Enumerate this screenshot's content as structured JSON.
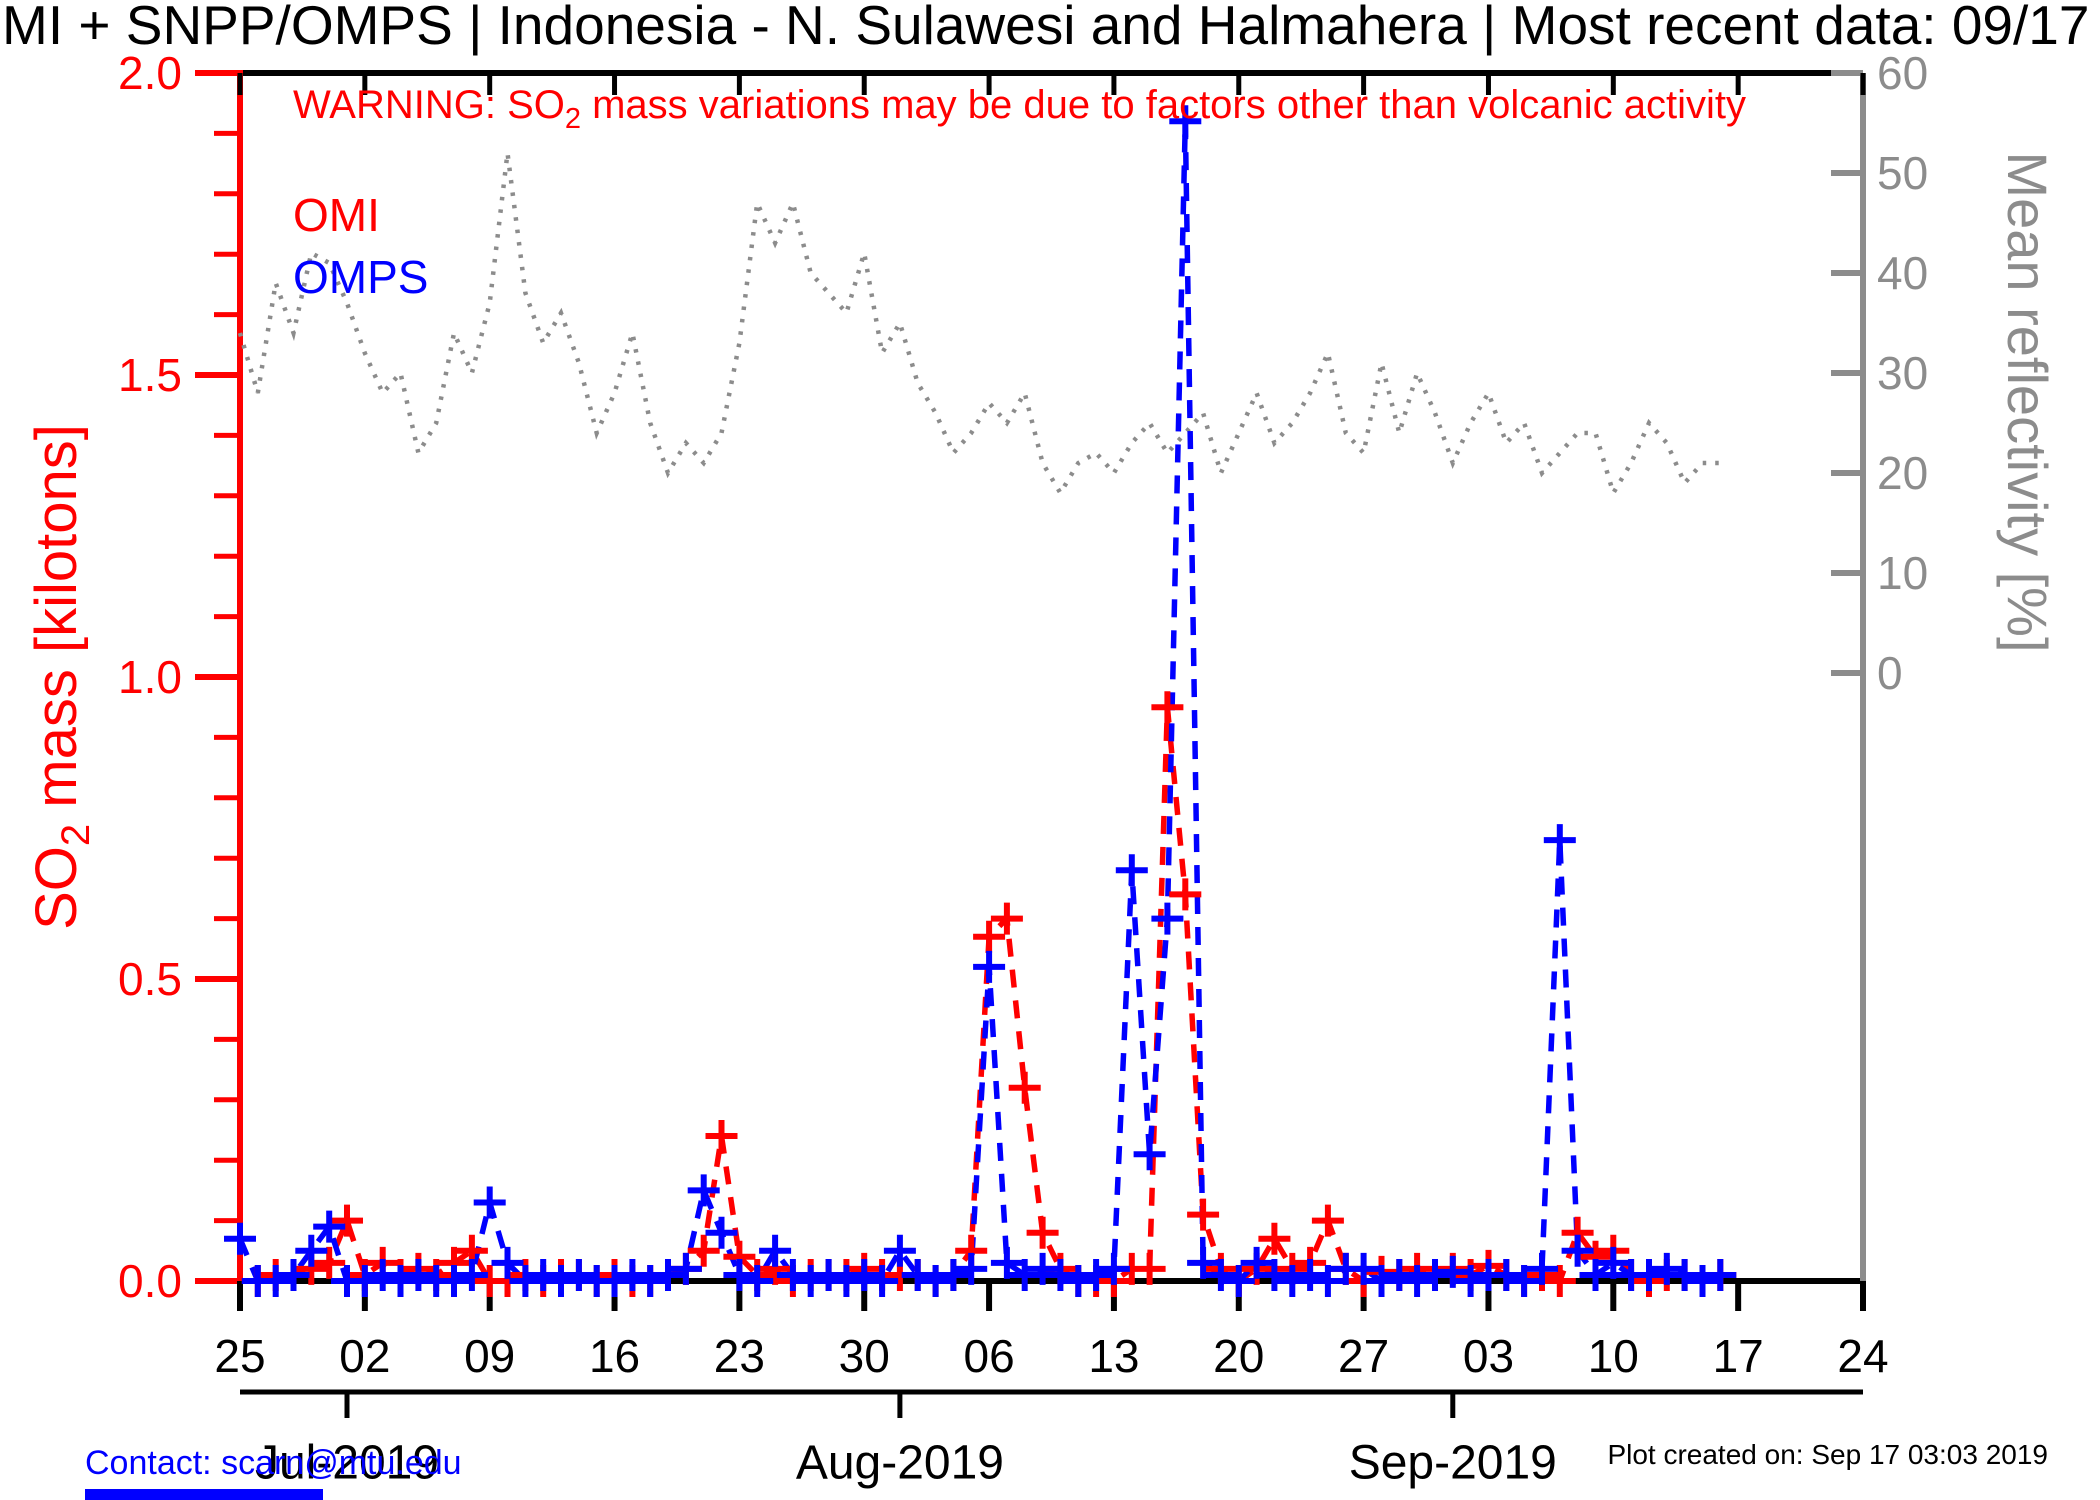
{
  "title": "MI + SNPP/OMPS | Indonesia - N. Sulawesi and Halmahera | Most recent data: 09/17",
  "warning": {
    "prefix": "WARNING: SO",
    "sub": "2",
    "rest": " mass variations may be due to factors other than volcanic activity"
  },
  "legend": {
    "omi": "OMI",
    "omps": "OMPS"
  },
  "colors": {
    "omi": "#ff0000",
    "omps": "#0000ff",
    "reflectivity": "#8c8c8c",
    "frame": "#000000",
    "contact": "#0000ff"
  },
  "left_axis": {
    "title_prefix": "SO",
    "title_sub": "2",
    "title_suffix": " mass [kilotons]",
    "tick_values": [
      0.0,
      0.5,
      1.0,
      1.5,
      2.0
    ],
    "tick_labels": [
      "0.0",
      "0.5",
      "1.0",
      "1.5",
      "2.0"
    ],
    "minor_step": 0.1,
    "range": [
      0.0,
      2.0
    ]
  },
  "right_axis": {
    "title": "Mean reflectivity [%]",
    "tick_values": [
      0,
      10,
      20,
      30,
      40,
      50,
      60
    ],
    "tick_labels": [
      "0",
      "10",
      "20",
      "30",
      "40",
      "50",
      "60"
    ],
    "range": [
      0,
      60
    ]
  },
  "x_axis": {
    "tick_days": [
      0,
      7,
      14,
      21,
      28,
      35,
      42,
      49,
      56,
      63,
      70,
      77,
      84,
      91
    ],
    "tick_labels": [
      "25",
      "02",
      "09",
      "16",
      "23",
      "30",
      "06",
      "13",
      "20",
      "27",
      "03",
      "10",
      "17",
      "24"
    ],
    "month_ticks": [
      {
        "day": 6,
        "label": "Jul-2019"
      },
      {
        "day": 37,
        "label": "Aug-2019"
      },
      {
        "day": 68,
        "label": "Sep-2019"
      }
    ],
    "range_days": [
      0,
      91
    ]
  },
  "footer": {
    "contact": "Contact: scarn@mtu.edu",
    "created": "Plot created on: Sep 17 03:03 2019"
  },
  "chart_data": {
    "type": "line",
    "title": "MI + SNPP/OMPS | Indonesia - N. Sulawesi and Halmahera | Most recent data: 09/17",
    "xlabel": "",
    "ylabel_left": "SO2 mass [kilotons]",
    "ylabel_right": "Mean reflectivity [%]",
    "ylim_left": [
      0.0,
      2.0
    ],
    "ylim_right": [
      0,
      60
    ],
    "grid": false,
    "legend_position": "top-left",
    "start_date": "2019-06-25",
    "sample_interval_days": 1,
    "series": [
      {
        "name": "OMI",
        "axis": "left",
        "units": "kilotons",
        "style": "dashed-plus",
        "color": "#ff0000",
        "values": [
          null,
          0,
          0.01,
          0.01,
          0.02,
          0.03,
          0.1,
          0.01,
          0.03,
          0.01,
          0.02,
          0.01,
          0.03,
          0.05,
          0,
          0,
          0.01,
          0,
          0.01,
          0.01,
          0,
          0.01,
          0,
          0,
          0.01,
          0.02,
          0.05,
          0.24,
          0.04,
          0.01,
          0.02,
          0,
          0.01,
          0.01,
          0.01,
          0.02,
          0.01,
          0.01,
          0.01,
          0,
          0.01,
          0.05,
          0.57,
          0.6,
          0.32,
          0.08,
          0.02,
          0,
          0,
          0,
          0.02,
          0.02,
          0.95,
          0.64,
          0.11,
          0.02,
          0,
          0.02,
          0.07,
          0.02,
          0.03,
          0.1,
          0.02,
          0,
          0.015,
          0.01,
          0.02,
          0.01,
          0.02,
          0.01,
          0.025,
          0.01,
          0,
          0.01,
          0,
          0.08,
          0.04,
          0.05,
          0.01,
          0,
          0.01,
          0.01,
          0,
          0.01
        ]
      },
      {
        "name": "OMPS",
        "axis": "left",
        "units": "kilotons",
        "style": "dashed-plus",
        "color": "#0000ff",
        "values": [
          0.07,
          0,
          0,
          0.01,
          0.05,
          0.09,
          0,
          0,
          0.01,
          0,
          0.01,
          0,
          0,
          0.01,
          0.13,
          0.03,
          0,
          0.01,
          0,
          0.01,
          0,
          0,
          0.01,
          0,
          0.01,
          0.02,
          0.15,
          0.08,
          0.01,
          0,
          0.05,
          0.01,
          0,
          0.01,
          0,
          0.01,
          0,
          0.05,
          0.01,
          0,
          0.01,
          0.02,
          0.52,
          0.03,
          0.01,
          0.02,
          0.01,
          0,
          0.01,
          0.02,
          0.68,
          0.21,
          0.6,
          1.92,
          0.03,
          0.01,
          0,
          0.03,
          0.01,
          0,
          0.01,
          0,
          0.02,
          0.02,
          0,
          0.01,
          0,
          0.01,
          0.015,
          0,
          0.01,
          0.01,
          0,
          0.02,
          0.73,
          0.05,
          0.01,
          0.03,
          0.01,
          0.01,
          0.02,
          0.01,
          0,
          0.01
        ]
      },
      {
        "name": "Mean reflectivity",
        "axis": "right",
        "units": "%",
        "style": "dotted",
        "color": "#8c8c8c",
        "values": [
          34,
          28,
          39,
          34,
          42,
          41,
          37,
          32,
          28,
          30,
          22,
          25,
          34,
          30,
          37,
          52,
          38,
          33,
          36,
          31,
          24,
          28,
          34,
          25,
          20,
          23,
          21,
          24,
          33,
          47,
          43,
          47,
          40,
          38,
          36,
          42,
          32,
          35,
          29,
          26,
          22,
          24,
          27,
          25,
          28,
          21,
          18,
          21,
          22,
          20,
          23,
          25,
          22,
          24,
          26,
          20,
          24,
          28,
          23,
          25,
          28,
          32,
          24,
          22,
          31,
          24,
          30,
          26,
          21,
          25,
          28,
          23,
          25,
          20,
          22,
          24,
          24,
          18,
          21,
          25,
          23,
          19,
          21,
          21
        ]
      }
    ]
  }
}
